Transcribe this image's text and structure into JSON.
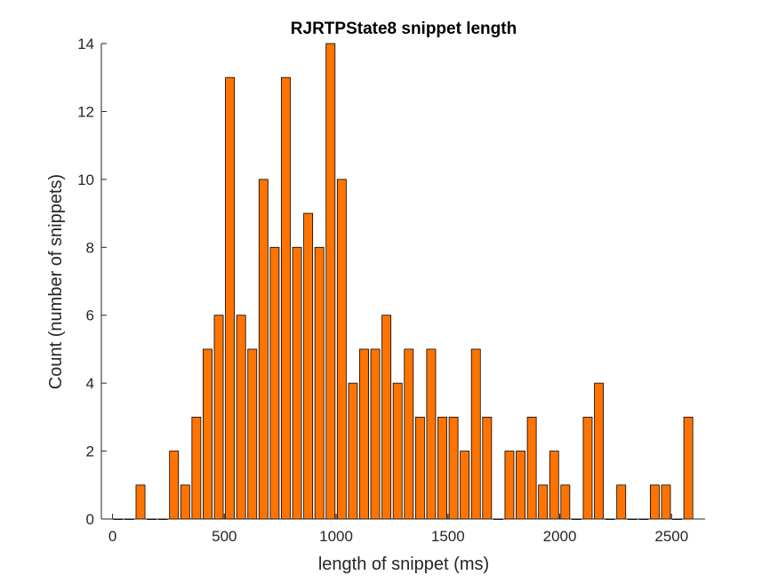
{
  "chart_data": {
    "type": "bar",
    "title": "RJRTPState8 snippet length",
    "xlabel": "length of snippet (ms)",
    "ylabel": "Count (number of snippets)",
    "xlim": [
      -50,
      2650
    ],
    "ylim": [
      0,
      14
    ],
    "xticks": [
      0,
      500,
      1000,
      1500,
      2000,
      2500
    ],
    "yticks": [
      0,
      2,
      4,
      6,
      8,
      10,
      12,
      14
    ],
    "bar_width": 40,
    "grid": false,
    "legend": "none",
    "colors": {
      "bar_fill": "#ff7400",
      "bar_edge": "#000000",
      "axis": "#262626"
    },
    "series": [
      {
        "x": [
          25,
          75,
          125,
          175,
          225,
          275,
          325,
          375,
          425,
          475,
          525,
          575,
          625,
          675,
          725,
          775,
          825,
          875,
          925,
          975,
          1025,
          1075,
          1125,
          1175,
          1225,
          1275,
          1325,
          1375,
          1425,
          1475,
          1525,
          1575,
          1625,
          1675,
          1725,
          1775,
          1825,
          1875,
          1925,
          1975,
          2025,
          2075,
          2125,
          2175,
          2225,
          2275,
          2325,
          2375,
          2425,
          2475,
          2525,
          2575
        ],
        "values": [
          0,
          0,
          1,
          0,
          0,
          2,
          1,
          3,
          5,
          6,
          13,
          6,
          5,
          10,
          8,
          13,
          8,
          9,
          8,
          14,
          10,
          4,
          5,
          5,
          6,
          4,
          5,
          3,
          5,
          3,
          3,
          2,
          5,
          3,
          0,
          2,
          2,
          3,
          1,
          2,
          1,
          0,
          3,
          4,
          0,
          1,
          0,
          0,
          1,
          1,
          0,
          3
        ]
      }
    ]
  }
}
